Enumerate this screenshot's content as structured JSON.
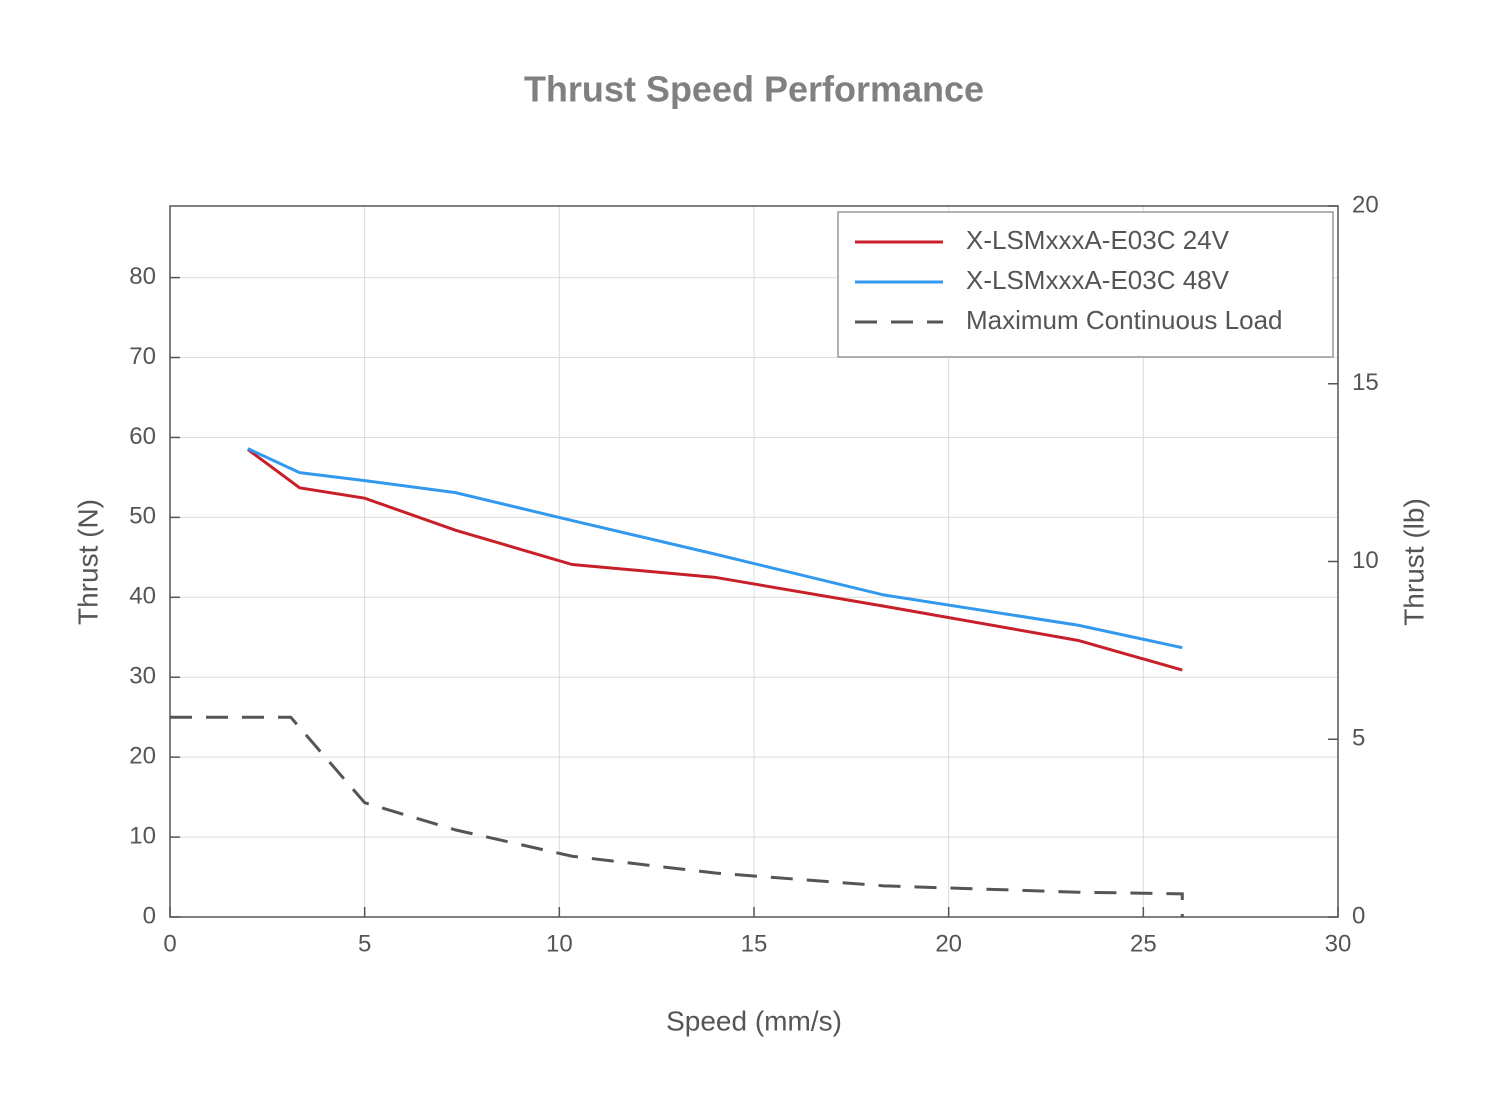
{
  "chart_data": {
    "type": "line",
    "title": "Thrust Speed Performance",
    "x_label": "Speed (mm/s)",
    "y_label": "Thrust (N)",
    "y2_label": "Thrust (lb)",
    "xlim": [
      0,
      30
    ],
    "xticks": [
      0,
      5,
      10,
      15,
      20,
      25,
      30
    ],
    "ylim": [
      0,
      88.96
    ],
    "yticks": [
      0,
      10,
      20,
      30,
      40,
      50,
      60,
      70,
      80
    ],
    "y2lim": [
      0,
      20
    ],
    "y2ticks": [
      0,
      5,
      10,
      15,
      20
    ],
    "grid": true,
    "legend": "upper right",
    "series": [
      {
        "name": "X-LSMxxxA-E03C 24V",
        "color": "#c8202a",
        "linestyle": "solid",
        "x": [
          2,
          3.33,
          5,
          7.33,
          10.33,
          14,
          18.33,
          23.33,
          26
        ],
        "values": [
          58.5,
          53.7,
          52.4,
          48.4,
          44.1,
          42.5,
          38.9,
          34.6,
          30.9
        ]
      },
      {
        "name": "X-LSMxxxA-E03C 48V",
        "color": "#3399ee",
        "linestyle": "solid",
        "x": [
          2,
          3.33,
          5,
          7.33,
          10.33,
          14,
          18.33,
          23.33,
          26
        ],
        "values": [
          58.6,
          55.6,
          54.6,
          53.1,
          49.6,
          45.4,
          40.3,
          36.5,
          33.7
        ]
      },
      {
        "name": "Maximum Continuous Load",
        "color": "#555555",
        "linestyle": "dashed",
        "x": [
          0,
          3.1,
          5,
          7.33,
          10.33,
          14,
          18.33,
          23.33,
          26,
          26
        ],
        "values": [
          25,
          25,
          14.3,
          10.9,
          7.6,
          5.5,
          3.9,
          3.1,
          2.9,
          0
        ]
      }
    ]
  }
}
